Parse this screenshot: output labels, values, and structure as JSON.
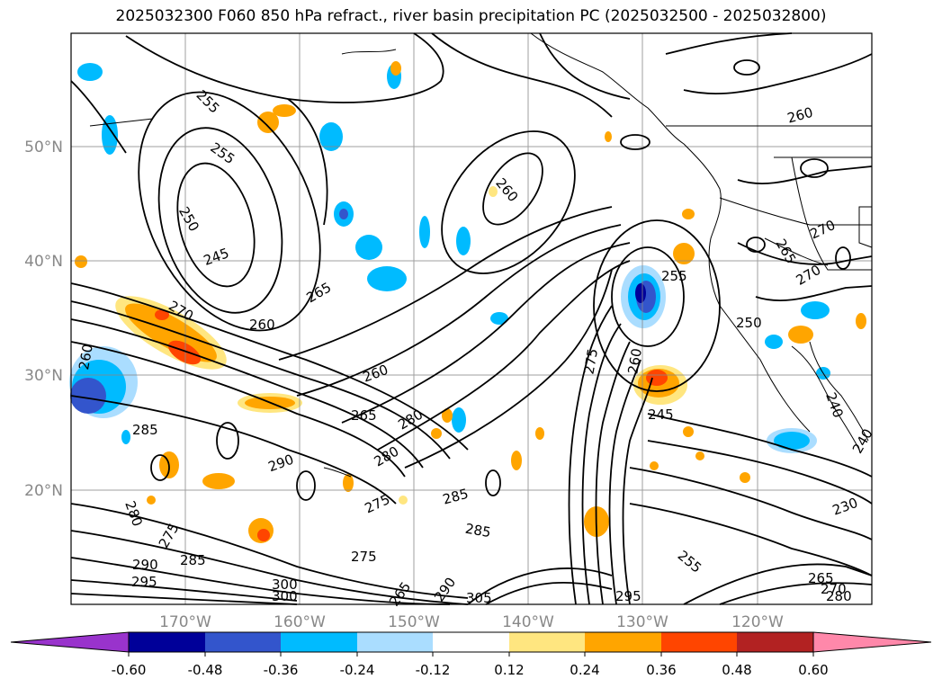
{
  "title": "2025032300 F060 850 hPa refract., river basin precipitation PC (2025032500 - 2025032800)",
  "lat_labels": [
    "50°N",
    "40°N",
    "30°N",
    "20°N"
  ],
  "lon_labels": [
    "170°W",
    "160°W",
    "150°W",
    "140°W",
    "130°W",
    "120°W"
  ],
  "colorbar": {
    "ticks": [
      "-0.60",
      "-0.48",
      "-0.36",
      "-0.24",
      "-0.12",
      "0.12",
      "0.24",
      "0.36",
      "0.48",
      "0.60"
    ],
    "colors": [
      "#9933cc",
      "#000099",
      "#3355cc",
      "#00bbff",
      "#aaddff",
      "#ffffff",
      "#ffe680",
      "#ffa500",
      "#ff4500",
      "#b22222",
      "#ff88aa"
    ]
  },
  "contour_labels": [
    "255",
    "255",
    "250",
    "245",
    "265",
    "260",
    "260",
    "260",
    "270",
    "265",
    "280",
    "280",
    "285",
    "290",
    "275",
    "285",
    "280",
    "275",
    "285",
    "290",
    "295",
    "275",
    "300",
    "300",
    "305",
    "265",
    "285",
    "290",
    "275",
    "260",
    "255",
    "245",
    "260",
    "270",
    "265",
    "270",
    "250",
    "240",
    "230",
    "295",
    "255",
    "265",
    "270",
    "280",
    "260",
    "240"
  ],
  "colors": {
    "contour": "#000000",
    "grid": "#888888",
    "coast": "#000000",
    "axis_text": "#888888"
  }
}
